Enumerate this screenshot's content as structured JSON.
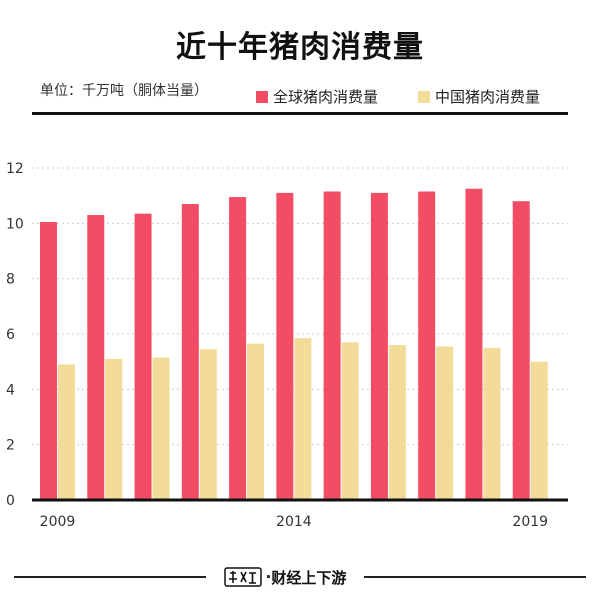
{
  "title": "近十年猪肉消费量",
  "unit_label": "单位：千万吨（胴体当量）",
  "footer": {
    "brand": "财经上下游",
    "separator": "·"
  },
  "colors": {
    "global": "#f24d65",
    "china": "#f3dc9a",
    "axis": "#111111",
    "grid": "#cccccc"
  },
  "chart_data": {
    "type": "bar",
    "title": "近十年猪肉消费量",
    "ylabel": "",
    "xlabel": "",
    "ylim": [
      0,
      12
    ],
    "yticks": [
      0,
      2,
      4,
      6,
      8,
      10,
      12
    ],
    "categories": [
      "2009",
      "2010",
      "2011",
      "2012",
      "2013",
      "2014",
      "2015",
      "2016",
      "2017",
      "2018",
      "2019"
    ],
    "x_tick_labels": [
      "2009",
      "",
      "",
      "",
      "",
      "2014",
      "",
      "",
      "",
      "",
      "2019"
    ],
    "grid": true,
    "legend_position": "top-right",
    "series": [
      {
        "name": "全球猪肉消费量",
        "values": [
          10.05,
          10.3,
          10.35,
          10.7,
          10.95,
          11.1,
          11.15,
          11.1,
          11.15,
          11.25,
          10.8
        ]
      },
      {
        "name": "中国猪肉消费量",
        "values": [
          4.9,
          5.1,
          5.15,
          5.45,
          5.65,
          5.85,
          5.7,
          5.6,
          5.55,
          5.5,
          5.0
        ]
      }
    ]
  }
}
